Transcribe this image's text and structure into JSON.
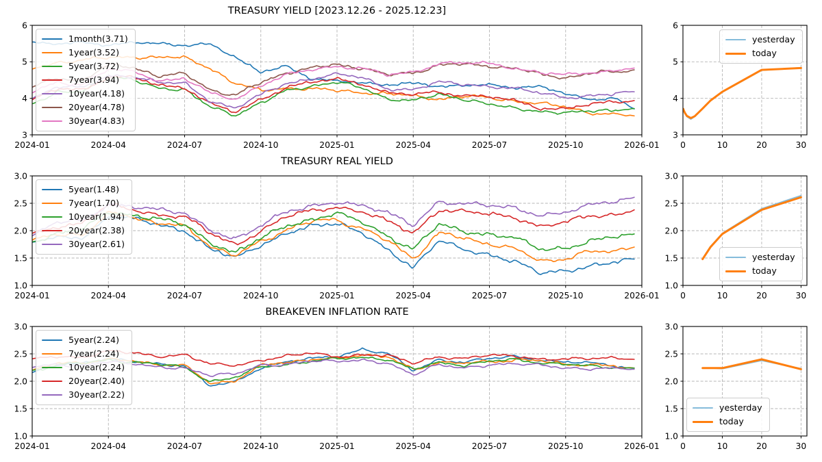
{
  "figure": {
    "background": "#ffffff"
  },
  "palette": {
    "blue": "#1f77b4",
    "orange": "#ff7f0e",
    "green": "#2ca02c",
    "red": "#d62728",
    "purple": "#9467bd",
    "brown": "#8c564b",
    "pink": "#e377c2",
    "yesterday_blue": "#85bcdb",
    "grid": "#b4b4b4",
    "spine": "#000000"
  },
  "chart_data": [
    {
      "name": "treasury-yield-history",
      "type": "line",
      "panel": "main",
      "row": 0,
      "title": "TREASURY YIELD [2023.12.26 - 2025.12.23]",
      "xlim": [
        0,
        24
      ],
      "ylim": [
        3,
        6
      ],
      "grid": true,
      "legend_loc": "upper left",
      "noise": 0.038,
      "xticks": [
        {
          "v": 0,
          "label": "2024-01"
        },
        {
          "v": 3,
          "label": "2024-04"
        },
        {
          "v": 6,
          "label": "2024-07"
        },
        {
          "v": 9,
          "label": "2024-10"
        },
        {
          "v": 12,
          "label": "2025-01"
        },
        {
          "v": 15,
          "label": "2025-04"
        },
        {
          "v": 18,
          "label": "2025-07"
        },
        {
          "v": 21,
          "label": "2025-10"
        },
        {
          "v": 24,
          "label": "2026-01"
        }
      ],
      "yticks": [
        {
          "v": 3,
          "label": "3"
        },
        {
          "v": 4,
          "label": "4"
        },
        {
          "v": 5,
          "label": "5"
        },
        {
          "v": 6,
          "label": "6"
        }
      ],
      "x": [
        0,
        1,
        2,
        3,
        4,
        5,
        6,
        7,
        8,
        9,
        10,
        11,
        12,
        13,
        14,
        15,
        16,
        17,
        18,
        19,
        20,
        21,
        22,
        23,
        23.7
      ],
      "series": [
        {
          "label": "1month(3.71)",
          "color": "#1f77b4",
          "width": 1.6,
          "y": [
            5.55,
            5.5,
            5.5,
            5.5,
            5.5,
            5.5,
            5.48,
            5.45,
            5.15,
            4.72,
            4.85,
            4.58,
            4.45,
            4.42,
            4.4,
            4.38,
            4.35,
            4.36,
            4.34,
            4.33,
            4.3,
            4.12,
            4.0,
            3.95,
            3.71
          ]
        },
        {
          "label": "1year(3.52)",
          "color": "#ff7f0e",
          "width": 1.6,
          "y": [
            4.8,
            5.0,
            5.05,
            5.1,
            5.15,
            5.12,
            5.1,
            4.85,
            4.4,
            4.2,
            4.3,
            4.25,
            4.2,
            4.18,
            4.12,
            4.05,
            4.0,
            4.05,
            4.0,
            3.95,
            3.85,
            3.75,
            3.62,
            3.55,
            3.52
          ]
        },
        {
          "label": "5year(3.72)",
          "color": "#2ca02c",
          "width": 1.6,
          "y": [
            3.85,
            4.2,
            4.2,
            4.55,
            4.5,
            4.3,
            4.25,
            3.75,
            3.5,
            3.9,
            4.25,
            4.3,
            4.42,
            4.3,
            4.0,
            3.95,
            4.08,
            3.95,
            3.88,
            3.75,
            3.6,
            3.58,
            3.68,
            3.7,
            3.72
          ]
        },
        {
          "label": "7year(3.94)",
          "color": "#d62728",
          "width": 1.6,
          "y": [
            3.95,
            4.25,
            4.25,
            4.6,
            4.55,
            4.35,
            4.32,
            3.85,
            3.6,
            3.98,
            4.32,
            4.42,
            4.52,
            4.42,
            4.15,
            4.08,
            4.18,
            4.1,
            4.03,
            3.92,
            3.75,
            3.72,
            3.82,
            3.9,
            3.94
          ]
        },
        {
          "label": "10year(4.18)",
          "color": "#9467bd",
          "width": 1.6,
          "y": [
            4.0,
            4.3,
            4.28,
            4.65,
            4.6,
            4.4,
            4.42,
            3.95,
            3.72,
            4.08,
            4.42,
            4.55,
            4.65,
            4.55,
            4.28,
            4.25,
            4.42,
            4.38,
            4.35,
            4.28,
            4.12,
            4.02,
            4.1,
            4.12,
            4.18
          ]
        },
        {
          "label": "20year(4.78)",
          "color": "#8c564b",
          "width": 1.6,
          "y": [
            4.3,
            4.55,
            4.52,
            4.9,
            4.85,
            4.62,
            4.65,
            4.25,
            4.08,
            4.42,
            4.72,
            4.82,
            4.92,
            4.85,
            4.62,
            4.7,
            4.92,
            4.92,
            4.9,
            4.82,
            4.65,
            4.58,
            4.68,
            4.72,
            4.78
          ]
        },
        {
          "label": "30year(4.83)",
          "color": "#e377c2",
          "width": 1.6,
          "y": [
            4.15,
            4.45,
            4.4,
            4.78,
            4.72,
            4.5,
            4.55,
            4.12,
            3.98,
            4.38,
            4.62,
            4.78,
            4.9,
            4.82,
            4.62,
            4.72,
            4.98,
            4.95,
            4.95,
            4.85,
            4.7,
            4.62,
            4.72,
            4.78,
            4.83
          ]
        }
      ]
    },
    {
      "name": "treasury-yield-curve",
      "type": "line",
      "panel": "small",
      "row": 0,
      "title": "",
      "xlim": [
        0,
        31.5
      ],
      "ylim": [
        3,
        6
      ],
      "grid": true,
      "legend_loc": "upper right",
      "noise": 0,
      "xticks": [
        {
          "v": 0,
          "label": "0"
        },
        {
          "v": 10,
          "label": "10"
        },
        {
          "v": 20,
          "label": "20"
        },
        {
          "v": 30,
          "label": "30"
        }
      ],
      "yticks": [
        {
          "v": 3,
          "label": "3"
        },
        {
          "v": 4,
          "label": "4"
        },
        {
          "v": 5,
          "label": "5"
        },
        {
          "v": 6,
          "label": "6"
        }
      ],
      "x": [
        0.083,
        0.25,
        0.5,
        1,
        2,
        3,
        5,
        7,
        10,
        20,
        30
      ],
      "series": [
        {
          "label": "yesterday",
          "color": "#85bcdb",
          "width": 2,
          "y": [
            3.71,
            3.66,
            3.59,
            3.5,
            3.43,
            3.5,
            3.71,
            3.93,
            4.17,
            4.77,
            4.84
          ]
        },
        {
          "label": "today",
          "color": "#ff7f0e",
          "width": 3,
          "y": [
            3.71,
            3.66,
            3.6,
            3.52,
            3.46,
            3.51,
            3.72,
            3.94,
            4.18,
            4.78,
            4.83
          ]
        }
      ]
    },
    {
      "name": "treasury-real-yield-history",
      "type": "line",
      "panel": "main",
      "row": 1,
      "title": "TREASURY REAL YIELD",
      "xlim": [
        0,
        24
      ],
      "ylim": [
        1,
        3
      ],
      "grid": true,
      "legend_loc": "upper left",
      "noise": 0.034,
      "xticks": [
        {
          "v": 0,
          "label": "2024-01"
        },
        {
          "v": 3,
          "label": "2024-04"
        },
        {
          "v": 6,
          "label": "2024-07"
        },
        {
          "v": 9,
          "label": "2024-10"
        },
        {
          "v": 12,
          "label": "2025-01"
        },
        {
          "v": 15,
          "label": "2025-04"
        },
        {
          "v": 18,
          "label": "2025-07"
        },
        {
          "v": 21,
          "label": "2025-10"
        },
        {
          "v": 24,
          "label": "2026-01"
        }
      ],
      "yticks": [
        {
          "v": 1,
          "label": "1.0"
        },
        {
          "v": 1.5,
          "label": "1.5"
        },
        {
          "v": 2,
          "label": "2.0"
        },
        {
          "v": 2.5,
          "label": "2.5"
        },
        {
          "v": 3,
          "label": "3.0"
        }
      ],
      "x": [
        0,
        1,
        2,
        3,
        4,
        5,
        6,
        7,
        8,
        9,
        10,
        11,
        12,
        13,
        14,
        15,
        16,
        17,
        18,
        19,
        20,
        21,
        22,
        23,
        23.7
      ],
      "series": [
        {
          "label": "5year(1.48)",
          "color": "#1f77b4",
          "width": 1.6,
          "y": [
            1.78,
            1.88,
            1.9,
            2.25,
            2.2,
            2.1,
            2.02,
            1.68,
            1.48,
            1.72,
            1.98,
            2.1,
            2.1,
            1.95,
            1.68,
            1.32,
            1.8,
            1.65,
            1.58,
            1.45,
            1.2,
            1.25,
            1.38,
            1.45,
            1.48
          ]
        },
        {
          "label": "7year(1.70)",
          "color": "#ff7f0e",
          "width": 1.6,
          "y": [
            1.82,
            1.92,
            1.95,
            2.3,
            2.25,
            2.15,
            2.06,
            1.74,
            1.54,
            1.78,
            2.04,
            2.16,
            2.2,
            2.05,
            1.8,
            1.5,
            1.95,
            1.85,
            1.78,
            1.65,
            1.45,
            1.5,
            1.6,
            1.65,
            1.7
          ]
        },
        {
          "label": "10year(1.94)",
          "color": "#2ca02c",
          "width": 1.6,
          "y": [
            1.8,
            1.96,
            2.0,
            2.35,
            2.3,
            2.2,
            2.1,
            1.8,
            1.6,
            1.84,
            2.1,
            2.22,
            2.3,
            2.15,
            1.92,
            1.65,
            2.1,
            2.0,
            1.94,
            1.85,
            1.66,
            1.7,
            1.8,
            1.88,
            1.94
          ]
        },
        {
          "label": "20year(2.38)",
          "color": "#d62728",
          "width": 1.6,
          "y": [
            1.95,
            2.1,
            2.12,
            2.45,
            2.4,
            2.3,
            2.24,
            1.95,
            1.76,
            2.0,
            2.24,
            2.36,
            2.45,
            2.35,
            2.15,
            1.95,
            2.4,
            2.35,
            2.28,
            2.25,
            2.1,
            2.15,
            2.25,
            2.3,
            2.38
          ]
        },
        {
          "label": "30year(2.61)",
          "color": "#9467bd",
          "width": 1.6,
          "y": [
            1.9,
            2.14,
            2.18,
            2.5,
            2.45,
            2.36,
            2.3,
            2.04,
            1.86,
            2.08,
            2.32,
            2.46,
            2.55,
            2.45,
            2.3,
            2.1,
            2.55,
            2.5,
            2.44,
            2.4,
            2.3,
            2.35,
            2.45,
            2.52,
            2.61
          ]
        }
      ]
    },
    {
      "name": "treasury-real-yield-curve",
      "type": "line",
      "panel": "small",
      "row": 1,
      "title": "",
      "xlim": [
        0,
        31.5
      ],
      "ylim": [
        1,
        3
      ],
      "grid": true,
      "legend_loc": "lower right",
      "noise": 0,
      "xticks": [
        {
          "v": 0,
          "label": "0"
        },
        {
          "v": 10,
          "label": "10"
        },
        {
          "v": 20,
          "label": "20"
        },
        {
          "v": 30,
          "label": "30"
        }
      ],
      "yticks": [
        {
          "v": 1,
          "label": "1.0"
        },
        {
          "v": 1.5,
          "label": "1.5"
        },
        {
          "v": 2,
          "label": "2.0"
        },
        {
          "v": 2.5,
          "label": "2.5"
        },
        {
          "v": 3,
          "label": "3.0"
        }
      ],
      "x": [
        5,
        7,
        10,
        20,
        30
      ],
      "series": [
        {
          "label": "yesterday",
          "color": "#85bcdb",
          "width": 2,
          "y": [
            1.49,
            1.71,
            1.95,
            2.4,
            2.64
          ]
        },
        {
          "label": "today",
          "color": "#ff7f0e",
          "width": 3,
          "y": [
            1.48,
            1.7,
            1.94,
            2.38,
            2.61
          ]
        }
      ]
    },
    {
      "name": "breakeven-inflation-history",
      "type": "line",
      "panel": "main",
      "row": 2,
      "title": "BREAKEVEN INFLATION RATE",
      "xlim": [
        0,
        24
      ],
      "ylim": [
        1,
        3
      ],
      "grid": true,
      "legend_loc": "upper left",
      "noise": 0.022,
      "xticks": [
        {
          "v": 0,
          "label": "2024-01"
        },
        {
          "v": 3,
          "label": "2024-04"
        },
        {
          "v": 6,
          "label": "2024-07"
        },
        {
          "v": 9,
          "label": "2024-10"
        },
        {
          "v": 12,
          "label": "2025-01"
        },
        {
          "v": 15,
          "label": "2025-04"
        },
        {
          "v": 18,
          "label": "2025-07"
        },
        {
          "v": 21,
          "label": "2025-10"
        },
        {
          "v": 24,
          "label": "2026-01"
        }
      ],
      "yticks": [
        {
          "v": 1,
          "label": "1.0"
        },
        {
          "v": 1.5,
          "label": "1.5"
        },
        {
          "v": 2,
          "label": "2.0"
        },
        {
          "v": 2.5,
          "label": "2.5"
        },
        {
          "v": 3,
          "label": "3.0"
        }
      ],
      "x": [
        0,
        1,
        2,
        3,
        4,
        5,
        6,
        7,
        8,
        9,
        10,
        11,
        12,
        13,
        14,
        15,
        16,
        17,
        18,
        19,
        20,
        21,
        22,
        23,
        23.7
      ],
      "series": [
        {
          "label": "5year(2.24)",
          "color": "#1f77b4",
          "width": 1.6,
          "y": [
            2.15,
            2.3,
            2.35,
            2.4,
            2.35,
            2.32,
            2.3,
            1.9,
            1.98,
            2.26,
            2.36,
            2.4,
            2.45,
            2.6,
            2.5,
            2.18,
            2.4,
            2.36,
            2.4,
            2.45,
            2.4,
            2.35,
            2.32,
            2.28,
            2.24
          ]
        },
        {
          "label": "7year(2.24)",
          "color": "#ff7f0e",
          "width": 1.6,
          "y": [
            2.2,
            2.32,
            2.35,
            2.4,
            2.36,
            2.32,
            2.28,
            1.96,
            2.02,
            2.27,
            2.36,
            2.4,
            2.4,
            2.5,
            2.44,
            2.2,
            2.36,
            2.32,
            2.36,
            2.4,
            2.36,
            2.32,
            2.3,
            2.26,
            2.24
          ]
        },
        {
          "label": "10year(2.24)",
          "color": "#2ca02c",
          "width": 1.6,
          "y": [
            2.2,
            2.3,
            2.32,
            2.4,
            2.35,
            2.3,
            2.26,
            2.0,
            2.06,
            2.26,
            2.32,
            2.36,
            2.4,
            2.45,
            2.4,
            2.2,
            2.35,
            2.3,
            2.35,
            2.4,
            2.35,
            2.3,
            2.27,
            2.26,
            2.24
          ]
        },
        {
          "label": "20year(2.40)",
          "color": "#d62728",
          "width": 1.6,
          "y": [
            2.4,
            2.45,
            2.45,
            2.55,
            2.5,
            2.46,
            2.5,
            2.3,
            2.28,
            2.4,
            2.46,
            2.5,
            2.45,
            2.5,
            2.46,
            2.32,
            2.46,
            2.42,
            2.46,
            2.46,
            2.42,
            2.4,
            2.4,
            2.44,
            2.4
          ]
        },
        {
          "label": "30year(2.22)",
          "color": "#9467bd",
          "width": 1.6,
          "y": [
            2.25,
            2.3,
            2.3,
            2.36,
            2.3,
            2.26,
            2.26,
            2.1,
            2.12,
            2.3,
            2.32,
            2.36,
            2.35,
            2.4,
            2.34,
            2.1,
            2.3,
            2.26,
            2.3,
            2.3,
            2.3,
            2.26,
            2.22,
            2.22,
            2.22
          ]
        }
      ]
    },
    {
      "name": "breakeven-inflation-curve",
      "type": "line",
      "panel": "small",
      "row": 2,
      "title": "",
      "xlim": [
        0,
        31.5
      ],
      "ylim": [
        1,
        3
      ],
      "grid": true,
      "legend_loc": "lower left",
      "noise": 0,
      "xticks": [
        {
          "v": 0,
          "label": "0"
        },
        {
          "v": 10,
          "label": "10"
        },
        {
          "v": 20,
          "label": "20"
        },
        {
          "v": 30,
          "label": "30"
        }
      ],
      "yticks": [
        {
          "v": 1,
          "label": "1.0"
        },
        {
          "v": 1.5,
          "label": "1.5"
        },
        {
          "v": 2,
          "label": "2.0"
        },
        {
          "v": 2.5,
          "label": "2.5"
        },
        {
          "v": 3,
          "label": "3.0"
        }
      ],
      "x": [
        5,
        7,
        10,
        20,
        30
      ],
      "series": [
        {
          "label": "yesterday",
          "color": "#85bcdb",
          "width": 2,
          "y": [
            2.24,
            2.24,
            2.23,
            2.38,
            2.23
          ]
        },
        {
          "label": "today",
          "color": "#ff7f0e",
          "width": 3,
          "y": [
            2.24,
            2.24,
            2.24,
            2.4,
            2.22
          ]
        }
      ]
    }
  ]
}
